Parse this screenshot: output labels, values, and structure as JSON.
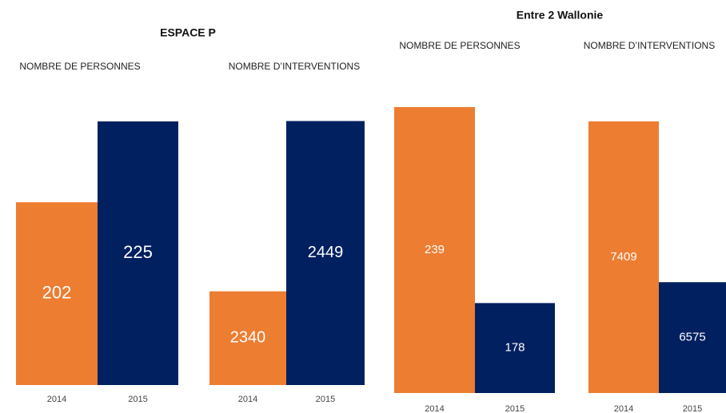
{
  "headings": [
    "ESPACE P",
    "Entre 2 Wallonie"
  ],
  "chart_data": [
    {
      "type": "bar",
      "title": "NOMBRE DE PERSONNES",
      "categories": [
        "2014",
        "2015"
      ],
      "values": [
        202,
        225
      ],
      "colors": [
        "#ed7d31",
        "#002060"
      ],
      "ylim": [
        150,
        230
      ]
    },
    {
      "type": "bar",
      "title": "NOMBRE D’INTERVENTIONS",
      "categories": [
        "2014",
        "2015"
      ],
      "values": [
        2340,
        2449
      ],
      "colors": [
        "#ed7d31",
        "#002060"
      ],
      "ylim": [
        2280,
        2460
      ]
    },
    {
      "type": "bar",
      "title": "NOMBRE DE PERSONNES",
      "categories": [
        "2014",
        "2015"
      ],
      "values": [
        239,
        178
      ],
      "colors": [
        "#ed7d31",
        "#002060"
      ],
      "ylim": [
        150,
        240
      ]
    },
    {
      "type": "bar",
      "title": "NOMBRE D’INTERVENTIONS",
      "categories": [
        "2014",
        "2015"
      ],
      "values": [
        7409,
        6575
      ],
      "colors": [
        "#ed7d31",
        "#002060"
      ],
      "ylim": [
        6000,
        7500
      ]
    }
  ]
}
